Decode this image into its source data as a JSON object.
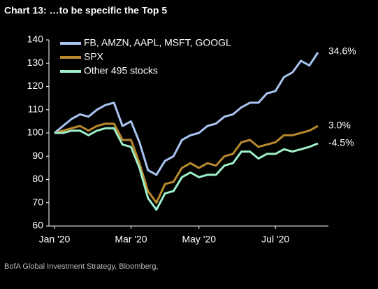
{
  "chart_data": {
    "type": "line",
    "title": "Chart 13: …to be specific the Top 5",
    "source": "BofA Global Investment Strategy, Bloomberg,",
    "categories": [
      "Jan '20",
      null,
      null,
      null,
      null,
      null,
      null,
      null,
      null,
      "Mar '20",
      null,
      null,
      null,
      null,
      null,
      null,
      null,
      "May '20",
      null,
      null,
      null,
      null,
      null,
      null,
      null,
      null,
      "Jul '20",
      null,
      null,
      null,
      null,
      null
    ],
    "series": [
      {
        "name": "FB, AMZN, AAPL, MSFT, GOOGL",
        "color": "#a9c4f0",
        "end_label": "34.6%",
        "values": [
          100,
          103,
          106,
          108,
          107,
          110,
          112,
          113,
          103,
          105,
          96,
          84,
          82,
          88,
          90,
          97,
          99,
          100,
          103,
          104,
          107,
          108,
          111,
          113,
          113,
          117,
          118,
          124,
          126,
          131,
          129,
          134.6
        ]
      },
      {
        "name": "SPX",
        "color": "#b8892e",
        "end_label": "3.0%",
        "values": [
          100,
          101,
          102,
          103,
          101,
          103,
          104,
          104,
          97,
          97,
          87,
          75,
          70,
          78,
          79,
          85,
          87,
          85,
          87,
          86,
          90,
          91,
          96,
          97,
          94,
          95,
          96,
          99,
          99,
          100,
          101,
          103
        ]
      },
      {
        "name": "Other 495 stocks",
        "color": "#9ef0c8",
        "end_label": "-4.5%",
        "values": [
          100,
          100,
          101,
          101,
          99,
          101,
          102,
          102,
          95,
          94,
          85,
          72,
          67,
          74,
          75,
          81,
          83,
          81,
          82,
          82,
          86,
          87,
          92,
          92,
          89,
          91,
          91,
          93,
          92,
          93,
          94,
          95.5
        ]
      }
    ],
    "ylim": [
      60,
      140
    ],
    "yticks": [
      60,
      70,
      80,
      90,
      100,
      110,
      120,
      130,
      140
    ],
    "legend": "upper left",
    "grid": false
  }
}
